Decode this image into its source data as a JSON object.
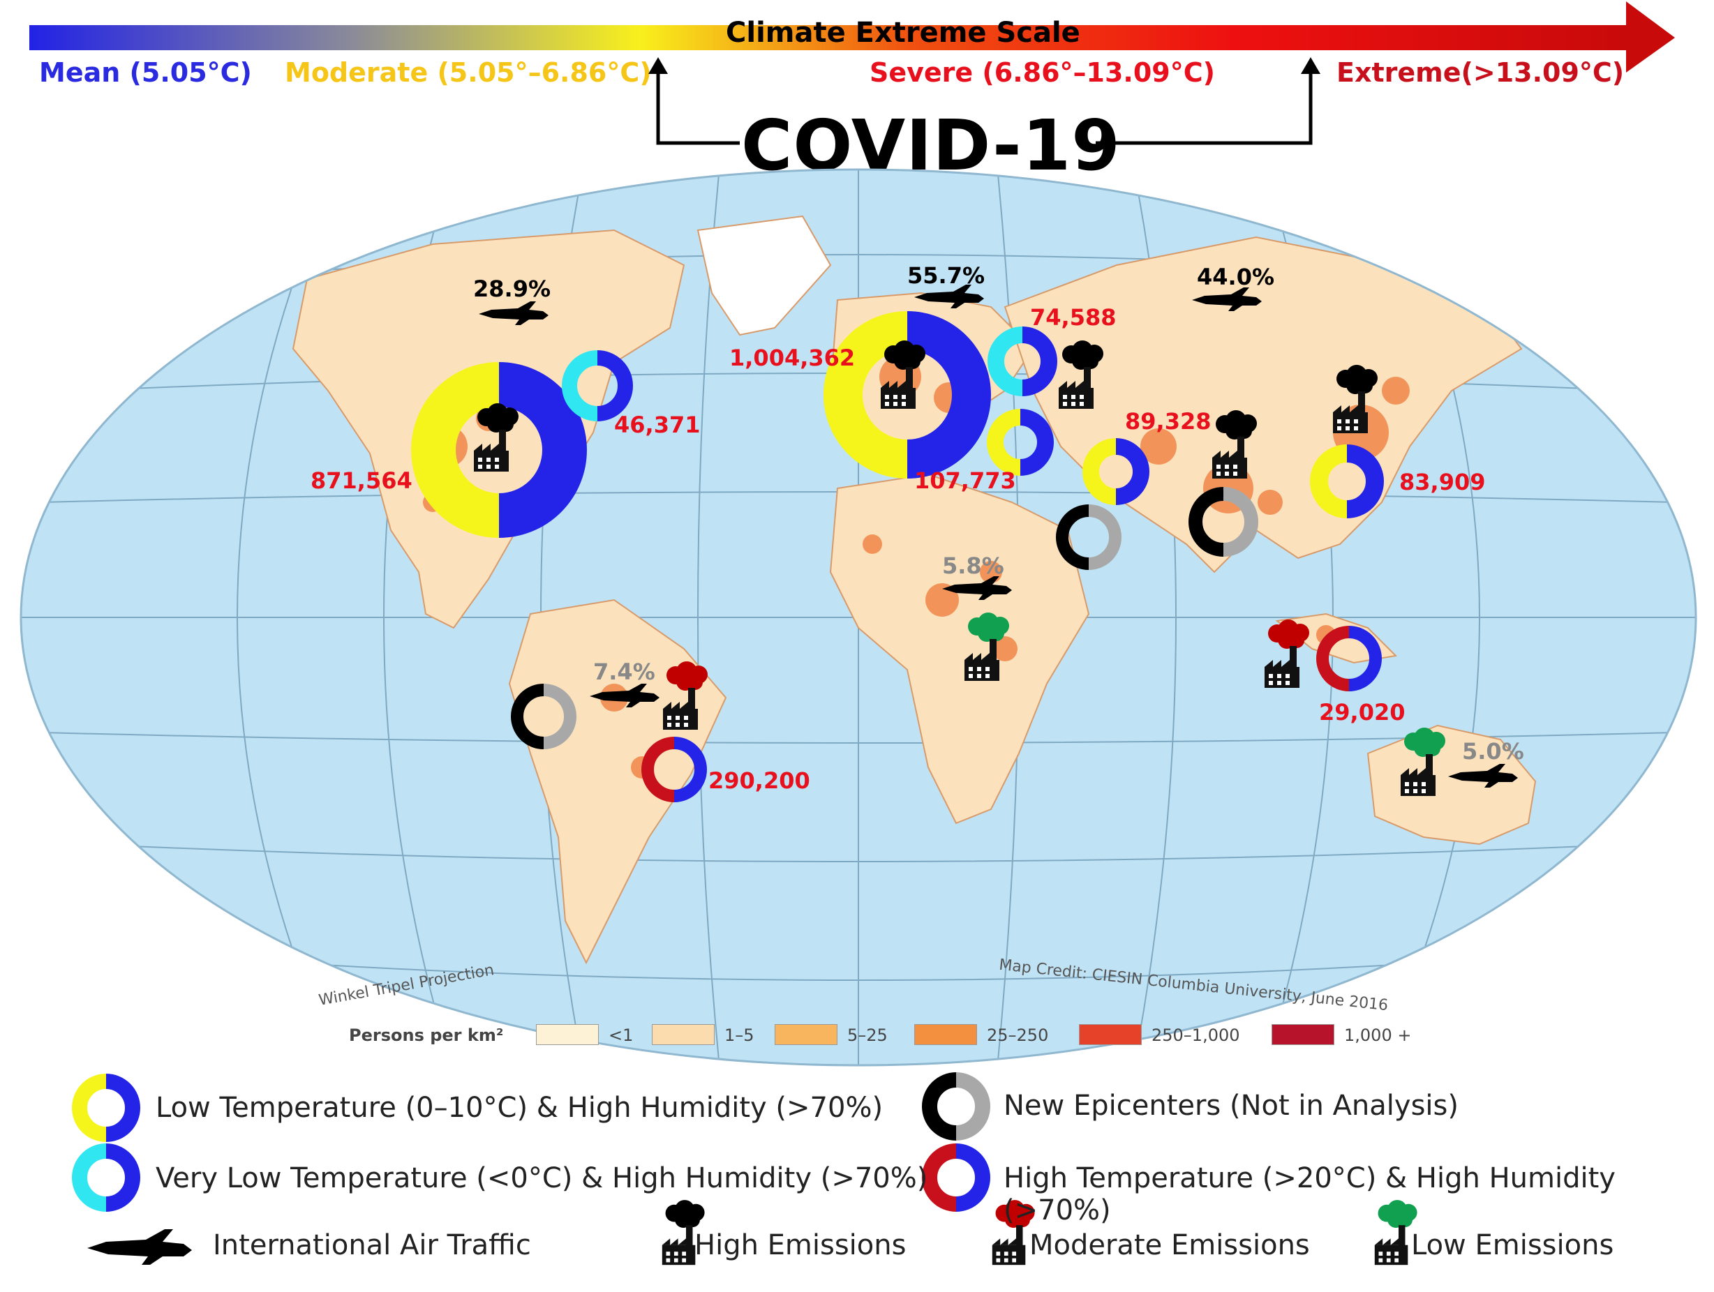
{
  "header": {
    "scale_title": "Climate Extreme Scale",
    "mean_label": "Mean (5.05°C)",
    "moderate_label": "Moderate (5.05°–6.86°C)",
    "severe_label": "Severe (6.86°–13.09°C)",
    "extreme_label": "Extreme(>13.09°C)",
    "covid_label": "COVID-19"
  },
  "map": {
    "projection_label": "Winkel Tripel Projection",
    "credit": "Map Credit: CIESIN Columbia University, June 2016",
    "case_counts": {
      "usa": "871,564",
      "canada": "46,371",
      "europe": "1,004,362",
      "russia": "74,588",
      "turkey": "107,773",
      "iran": "89,328",
      "china": "83,909",
      "indonesia": "29,020",
      "brazil": "290,200"
    },
    "air_traffic_pct": {
      "north_america": "28.9%",
      "europe": "55.7%",
      "asia": "44.0%",
      "africa": "5.8%",
      "south_america": "7.4%",
      "australia": "5.0%"
    }
  },
  "density_legend": {
    "title": "Persons per km²",
    "items": [
      {
        "label": "<1",
        "color": "#fdf1d6"
      },
      {
        "label": "1–5",
        "color": "#fbdcae"
      },
      {
        "label": "5–25",
        "color": "#f8b55e"
      },
      {
        "label": "25–250",
        "color": "#f29040"
      },
      {
        "label": "250–1,000",
        "color": "#e6422a"
      },
      {
        "label": "1,000 +",
        "color": "#b7142c"
      }
    ]
  },
  "legend": {
    "low_temp": "Low Temperature (0–10°C) & High Humidity (>70%)",
    "very_low_temp": "Very Low Temperature (<0°C) & High Humidity (>70%)",
    "new_epicenters": "New Epicenters (Not in Analysis)",
    "high_temp": "High Temperature (>20°C) & High Humidity (>70%)",
    "air_traffic": "International Air Traffic",
    "high_emissions": "High Emissions",
    "moderate_emissions": "Moderate Emissions",
    "low_emissions": "Low Emissions"
  },
  "colors": {
    "mean": "#2a2ae0",
    "moderate": "#f5c518",
    "severe": "#e8101c",
    "extreme": "#c8101c",
    "low_temp_ring": "#f5f51c",
    "very_low_ring": "#30e6f0",
    "blue_ring": "#2424e8",
    "epicenter_gray": "#a8a8a8",
    "high_temp_red": "#c8101c",
    "emission_high": "#000000",
    "emission_moderate": "#c00000",
    "emission_low": "#10a050",
    "ocean": "#bfe3f5",
    "land": "#fbe2bc"
  }
}
